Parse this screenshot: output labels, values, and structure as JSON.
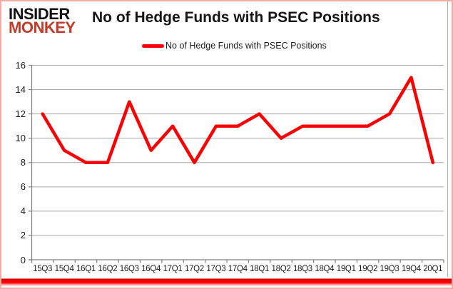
{
  "logo": {
    "line1": "INSIDER",
    "line2": "MONKEY"
  },
  "chart_data": {
    "type": "line",
    "title": "No of Hedge Funds with PSEC Positions",
    "legend": "No of Hedge Funds with PSEC Positions",
    "categories": [
      "15Q3",
      "15Q4",
      "16Q1",
      "16Q2",
      "16Q3",
      "16Q4",
      "17Q1",
      "17Q2",
      "17Q3",
      "17Q4",
      "18Q1",
      "18Q2",
      "18Q3",
      "18Q4",
      "19Q1",
      "19Q2",
      "19Q3",
      "19Q4",
      "20Q1"
    ],
    "values": [
      12,
      9,
      8,
      8,
      13,
      9,
      11,
      8,
      11,
      11,
      12,
      10,
      11,
      11,
      11,
      11,
      12,
      15,
      8
    ],
    "xlabel": "",
    "ylabel": "",
    "ylim": [
      0,
      16
    ],
    "y_ticks": [
      0,
      2,
      4,
      6,
      8,
      10,
      12,
      14,
      16
    ],
    "grid": true,
    "legend_position": "top"
  },
  "colors": {
    "line_red": "#fb0000",
    "logo_black": "#131313",
    "logo_red": "#c33b28",
    "grid_gray": "#a6a6a6",
    "axis_gray": "#7f7f7f",
    "border_pink": "#f3aca4",
    "strip_red": "#fb0000"
  }
}
